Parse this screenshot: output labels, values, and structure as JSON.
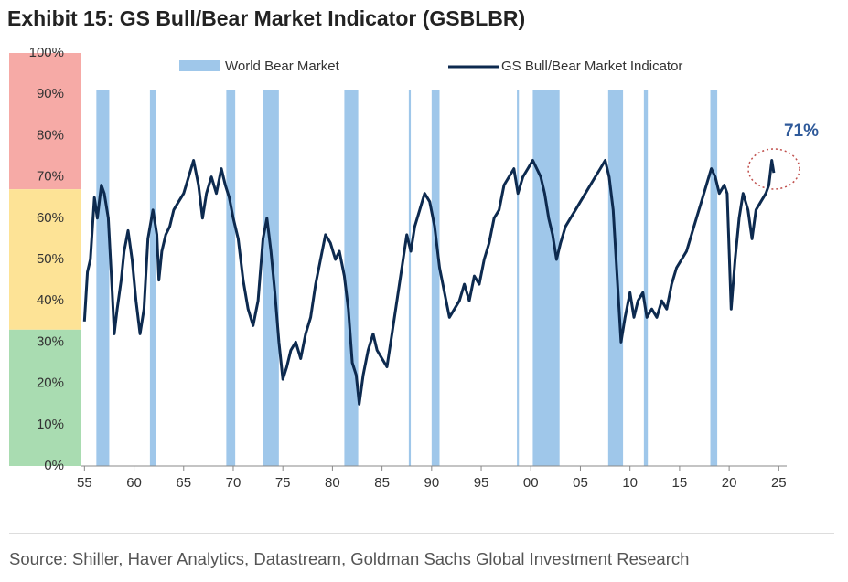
{
  "chart_data": {
    "type": "line",
    "title": "Exhibit 15: GS Bull/Bear Market Indicator (GSBLBR)",
    "source": "Source: Shiller, Haver Analytics, Datastream, Goldman Sachs Global Investment Research",
    "annotation": "71%",
    "xlim": [
      1954.6,
      2025.8
    ],
    "xticks": [
      {
        "value": 1955,
        "label": "55"
      },
      {
        "value": 1960,
        "label": "60"
      },
      {
        "value": 1965,
        "label": "65"
      },
      {
        "value": 1970,
        "label": "70"
      },
      {
        "value": 1975,
        "label": "75"
      },
      {
        "value": 1980,
        "label": "80"
      },
      {
        "value": 1985,
        "label": "85"
      },
      {
        "value": 1990,
        "label": "90"
      },
      {
        "value": 1995,
        "label": "95"
      },
      {
        "value": 2000,
        "label": "00"
      },
      {
        "value": 2005,
        "label": "05"
      },
      {
        "value": 2010,
        "label": "10"
      },
      {
        "value": 2015,
        "label": "15"
      },
      {
        "value": 2020,
        "label": "20"
      },
      {
        "value": 2025,
        "label": "25"
      }
    ],
    "ylim": [
      0,
      100
    ],
    "yticks": [
      {
        "value": 0,
        "label": "0%"
      },
      {
        "value": 10,
        "label": "10%"
      },
      {
        "value": 20,
        "label": "20%"
      },
      {
        "value": 30,
        "label": "30%"
      },
      {
        "value": 40,
        "label": "40%"
      },
      {
        "value": 50,
        "label": "50%"
      },
      {
        "value": 60,
        "label": "60%"
      },
      {
        "value": 70,
        "label": "70%"
      },
      {
        "value": 80,
        "label": "80%"
      },
      {
        "value": 90,
        "label": "90%"
      },
      {
        "value": 100,
        "label": "100%"
      }
    ],
    "zones": [
      {
        "from": 67,
        "to": 100,
        "color": "#f6aaa6"
      },
      {
        "from": 33,
        "to": 67,
        "color": "#fde396"
      },
      {
        "from": 0,
        "to": 33,
        "color": "#a9dcb1"
      }
    ],
    "bear_markets": {
      "name": "World Bear Market",
      "color": "#9fc7ea",
      "periods": [
        [
          1956.2,
          1957.5
        ],
        [
          1961.6,
          1962.2
        ],
        [
          1969.3,
          1970.2
        ],
        [
          1973.0,
          1974.6
        ],
        [
          1981.2,
          1982.6
        ],
        [
          1987.7,
          1987.9
        ],
        [
          1990.0,
          1990.8
        ],
        [
          1998.6,
          1998.8
        ],
        [
          2000.2,
          2002.9
        ],
        [
          2007.8,
          2009.3
        ],
        [
          2011.4,
          2011.8
        ],
        [
          2018.1,
          2018.8
        ]
      ]
    },
    "series": [
      {
        "name": "GS Bull/Bear Market Indicator",
        "color": "#0d2a4f",
        "x": [
          1955.0,
          1955.3,
          1955.6,
          1956.0,
          1956.3,
          1956.7,
          1957.0,
          1957.4,
          1957.8,
          1958.0,
          1958.3,
          1958.7,
          1959.0,
          1959.4,
          1959.8,
          1960.2,
          1960.6,
          1961.0,
          1961.4,
          1961.9,
          1962.3,
          1962.5,
          1962.8,
          1963.2,
          1963.6,
          1964.0,
          1964.5,
          1965.0,
          1965.5,
          1966.0,
          1966.5,
          1966.9,
          1967.3,
          1967.8,
          1968.3,
          1968.8,
          1969.2,
          1969.6,
          1970.0,
          1970.5,
          1971.0,
          1971.5,
          1972.0,
          1972.5,
          1973.0,
          1973.4,
          1973.8,
          1974.2,
          1974.6,
          1975.0,
          1975.4,
          1975.8,
          1976.3,
          1976.8,
          1977.3,
          1977.8,
          1978.3,
          1978.8,
          1979.3,
          1979.8,
          1980.3,
          1980.7,
          1981.2,
          1981.6,
          1982.0,
          1982.4,
          1982.7,
          1983.1,
          1983.6,
          1984.1,
          1984.5,
          1985.0,
          1985.5,
          1986.0,
          1986.5,
          1987.0,
          1987.5,
          1987.9,
          1988.3,
          1988.8,
          1989.3,
          1989.8,
          1990.3,
          1990.8,
          1991.3,
          1991.8,
          1992.3,
          1992.8,
          1993.3,
          1993.8,
          1994.3,
          1994.8,
          1995.3,
          1995.8,
          1996.3,
          1996.8,
          1997.3,
          1997.8,
          1998.3,
          1998.7,
          1999.2,
          1999.7,
          2000.2,
          2000.6,
          2001.0,
          2001.4,
          2001.8,
          2002.2,
          2002.6,
          2003.0,
          2003.5,
          2004.0,
          2004.5,
          2005.0,
          2005.5,
          2006.0,
          2006.5,
          2007.0,
          2007.5,
          2007.9,
          2008.3,
          2008.7,
          2009.1,
          2009.5,
          2010.0,
          2010.4,
          2010.8,
          2011.3,
          2011.7,
          2012.2,
          2012.7,
          2013.2,
          2013.7,
          2014.2,
          2014.7,
          2015.2,
          2015.7,
          2016.2,
          2016.7,
          2017.2,
          2017.7,
          2018.2,
          2018.6,
          2019.0,
          2019.5,
          2019.8,
          2020.2,
          2020.6,
          2021.0,
          2021.4,
          2021.9,
          2022.3,
          2022.7,
          2023.2,
          2023.7,
          2024.0,
          2024.3,
          2024.5
        ],
        "values": [
          35,
          47,
          50,
          65,
          60,
          68,
          66,
          60,
          42,
          32,
          38,
          45,
          52,
          57,
          50,
          40,
          32,
          38,
          55,
          62,
          56,
          45,
          52,
          56,
          58,
          62,
          64,
          66,
          70,
          74,
          68,
          60,
          66,
          70,
          66,
          72,
          68,
          65,
          60,
          55,
          45,
          38,
          34,
          40,
          55,
          60,
          52,
          42,
          30,
          21,
          24,
          28,
          30,
          26,
          32,
          36,
          44,
          50,
          56,
          54,
          50,
          52,
          46,
          38,
          25,
          22,
          15,
          22,
          28,
          32,
          28,
          26,
          24,
          32,
          40,
          48,
          56,
          52,
          58,
          62,
          66,
          64,
          58,
          48,
          42,
          36,
          38,
          40,
          44,
          40,
          46,
          44,
          50,
          54,
          60,
          62,
          68,
          70,
          72,
          66,
          70,
          72,
          74,
          72,
          70,
          66,
          60,
          56,
          50,
          54,
          58,
          60,
          62,
          64,
          66,
          68,
          70,
          72,
          74,
          70,
          62,
          46,
          30,
          36,
          42,
          36,
          40,
          42,
          36,
          38,
          36,
          40,
          38,
          44,
          48,
          50,
          52,
          56,
          60,
          64,
          68,
          72,
          70,
          66,
          68,
          66,
          38,
          50,
          60,
          66,
          62,
          55,
          62,
          64,
          66,
          68,
          74,
          71
        ]
      }
    ]
  }
}
